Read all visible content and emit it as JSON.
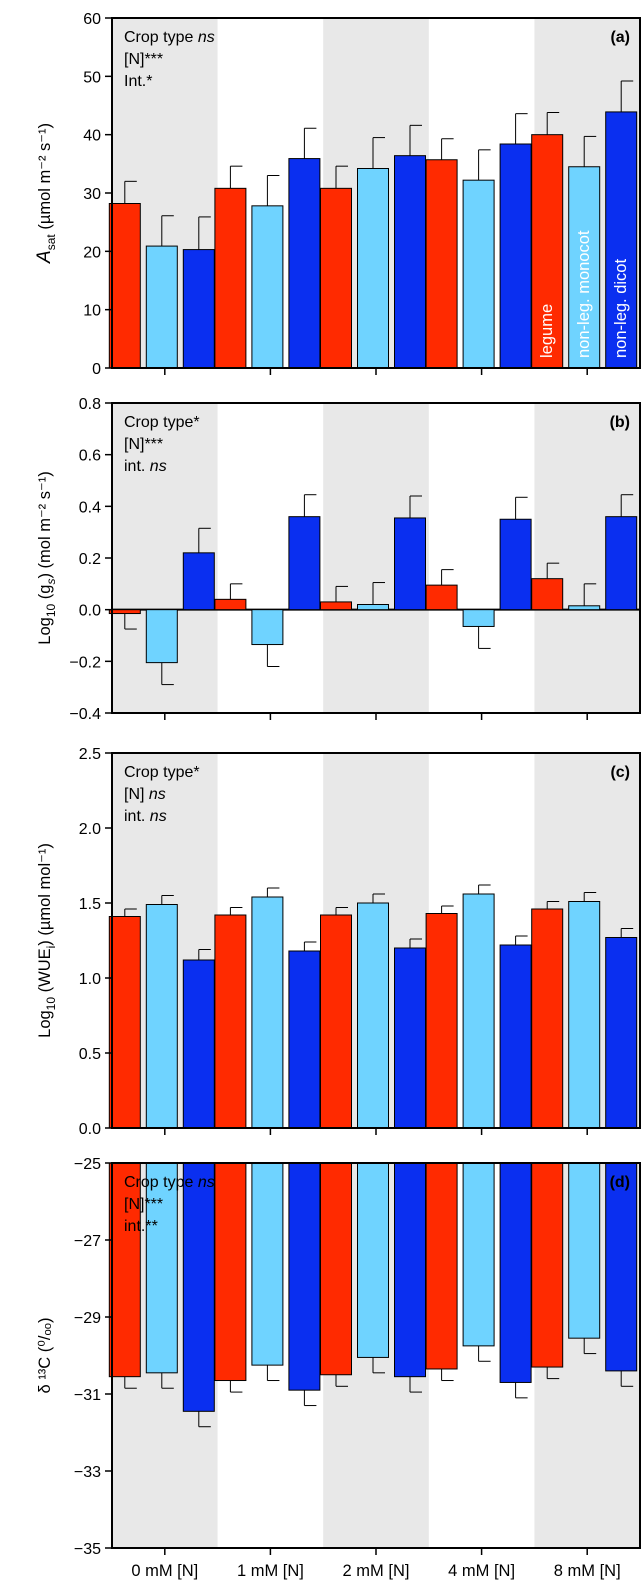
{
  "colors": {
    "legume": "#ff2a00",
    "non_leg_monocot": "#6fd3ff",
    "non_leg_dicot": "#0a2ff0",
    "shade": "#e8e8e8"
  },
  "categories": [
    "0 mM [N]",
    "1 mM [N]",
    "2 mM [N]",
    "4 mM [N]",
    "8 mM [N]"
  ],
  "legend": [
    "legume",
    "non-leg. monocot",
    "non-leg. dicot"
  ],
  "chart_data": [
    {
      "type": "bar",
      "panel": "(a)",
      "ylabel": {
        "main": "A",
        "sub": "sat",
        "units": " (µmol m⁻² s⁻¹)"
      },
      "ylim": [
        0,
        60
      ],
      "yticks": [
        0,
        10,
        20,
        30,
        40,
        50,
        60
      ],
      "tick_labels": [
        "0",
        "10",
        "20",
        "30",
        "40",
        "50",
        "60"
      ],
      "stats": [
        "Crop type ns",
        "[N]***",
        "Int.*"
      ],
      "series": [
        {
          "name": "legume",
          "values": [
            28.2,
            30.8,
            30.8,
            35.7,
            40.0
          ],
          "errors": [
            3.8,
            3.8,
            3.8,
            3.6,
            3.8
          ]
        },
        {
          "name": "non-leg. monocot",
          "values": [
            20.9,
            27.8,
            34.2,
            32.2,
            34.5
          ],
          "errors": [
            5.2,
            5.2,
            5.3,
            5.2,
            5.2
          ]
        },
        {
          "name": "non-leg. dicot",
          "values": [
            20.3,
            35.9,
            36.4,
            38.4,
            43.9
          ],
          "errors": [
            5.6,
            5.2,
            5.2,
            5.2,
            5.3
          ]
        }
      ]
    },
    {
      "type": "bar",
      "panel": "(b)",
      "ylabel": {
        "main": "Log",
        "sub": "10",
        "units": " (g",
        "units_sub": "s",
        "units_tail": ") (mol m⁻² s⁻¹)"
      },
      "ylim": [
        -0.4,
        0.8
      ],
      "yticks": [
        -0.4,
        -0.2,
        0.0,
        0.2,
        0.4,
        0.6,
        0.8
      ],
      "tick_labels": [
        "−0.4",
        "−0.2",
        "0.0",
        "0.2",
        "0.4",
        "0.6",
        "0.8"
      ],
      "stats": [
        "Crop type*",
        "[N]***",
        "int. ns"
      ],
      "series": [
        {
          "name": "legume",
          "values": [
            -0.015,
            0.04,
            0.03,
            0.095,
            0.12
          ],
          "errors": [
            0.06,
            0.06,
            0.06,
            0.06,
            0.06
          ]
        },
        {
          "name": "non-leg. monocot",
          "values": [
            -0.205,
            -0.135,
            0.02,
            -0.065,
            0.015
          ],
          "errors": [
            0.085,
            0.085,
            0.085,
            0.085,
            0.085
          ]
        },
        {
          "name": "non-leg. dicot",
          "values": [
            0.22,
            0.36,
            0.355,
            0.35,
            0.36
          ],
          "errors": [
            0.095,
            0.085,
            0.085,
            0.085,
            0.085
          ]
        }
      ]
    },
    {
      "type": "bar",
      "panel": "(c)",
      "ylabel": {
        "main": "Log",
        "sub": "10",
        "units": " (WUE",
        "units_sub": "i",
        "units_tail": ") (µmol mol⁻¹)"
      },
      "ylim": [
        0,
        2.5
      ],
      "yticks": [
        0,
        0.5,
        1.0,
        1.5,
        2.0,
        2.5
      ],
      "tick_labels": [
        "0.0",
        "0.5",
        "1.0",
        "1.5",
        "2.0",
        "2.5"
      ],
      "stats": [
        "Crop type*",
        "[N] ns",
        "int. ns"
      ],
      "series": [
        {
          "name": "legume",
          "values": [
            1.41,
            1.42,
            1.42,
            1.43,
            1.46
          ],
          "errors": [
            0.05,
            0.05,
            0.05,
            0.05,
            0.05
          ]
        },
        {
          "name": "non-leg. monocot",
          "values": [
            1.49,
            1.54,
            1.5,
            1.56,
            1.51
          ],
          "errors": [
            0.06,
            0.06,
            0.06,
            0.06,
            0.06
          ]
        },
        {
          "name": "non-leg. dicot",
          "values": [
            1.12,
            1.18,
            1.2,
            1.22,
            1.27
          ],
          "errors": [
            0.07,
            0.06,
            0.06,
            0.06,
            0.06
          ]
        }
      ]
    },
    {
      "type": "bar",
      "panel": "(d)",
      "ylabel": {
        "main": "δ ¹³C (⁰/ₒₒ)"
      },
      "ylim": [
        -35,
        -25
      ],
      "yticks": [
        -35,
        -33,
        -31,
        -29,
        -27,
        -25
      ],
      "tick_labels": [
        "−35",
        "−33",
        "−31",
        "−29",
        "−27",
        "−25"
      ],
      "stats": [
        "Crop type ns",
        "[N]***",
        "int.**"
      ],
      "series": [
        {
          "name": "legume",
          "values": [
            -30.55,
            -30.65,
            -30.5,
            -30.35,
            -30.3
          ],
          "errors": [
            0.3,
            0.3,
            0.3,
            0.3,
            0.3
          ]
        },
        {
          "name": "non-leg. monocot",
          "values": [
            -30.45,
            -30.25,
            -30.05,
            -29.75,
            -29.55
          ],
          "errors": [
            0.4,
            0.4,
            0.4,
            0.4,
            0.4
          ]
        },
        {
          "name": "non-leg. dicot",
          "values": [
            -31.45,
            -30.9,
            -30.55,
            -30.7,
            -30.4
          ],
          "errors": [
            0.4,
            0.4,
            0.4,
            0.4,
            0.4
          ]
        }
      ]
    }
  ]
}
